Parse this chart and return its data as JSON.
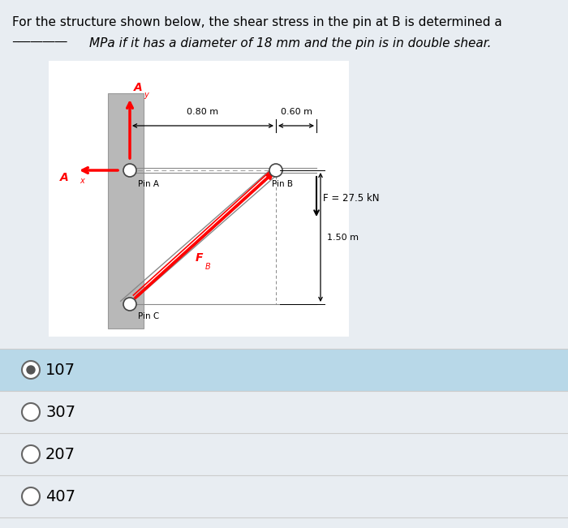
{
  "title_line1": "For the structure shown below, the shear stress in the pin at B is determined a",
  "title_line2": "MPa if it has a diameter of 18 mm and the pin is in double shear.",
  "bg_color": "#e8edf2",
  "diagram_bg": "#f5f5f5",
  "options": [
    "107",
    "307",
    "207",
    "407"
  ],
  "selected_option": 0,
  "selected_bg": "#b8d8e8",
  "option_bg": "#e8edf2",
  "dim_08": "0.80 m",
  "dim_06": "0.60 m",
  "dim_15": "1.50 m",
  "force_label": "F = 27.5 kN",
  "fb_label": "F",
  "fb_sub": "B",
  "pin_a_label": "Pin A",
  "pin_b_label": "Pin B",
  "pin_c_label": "Pin C",
  "ay_label": "A",
  "ay_sub": "y",
  "ax_label": "A",
  "ax_sub": "x"
}
